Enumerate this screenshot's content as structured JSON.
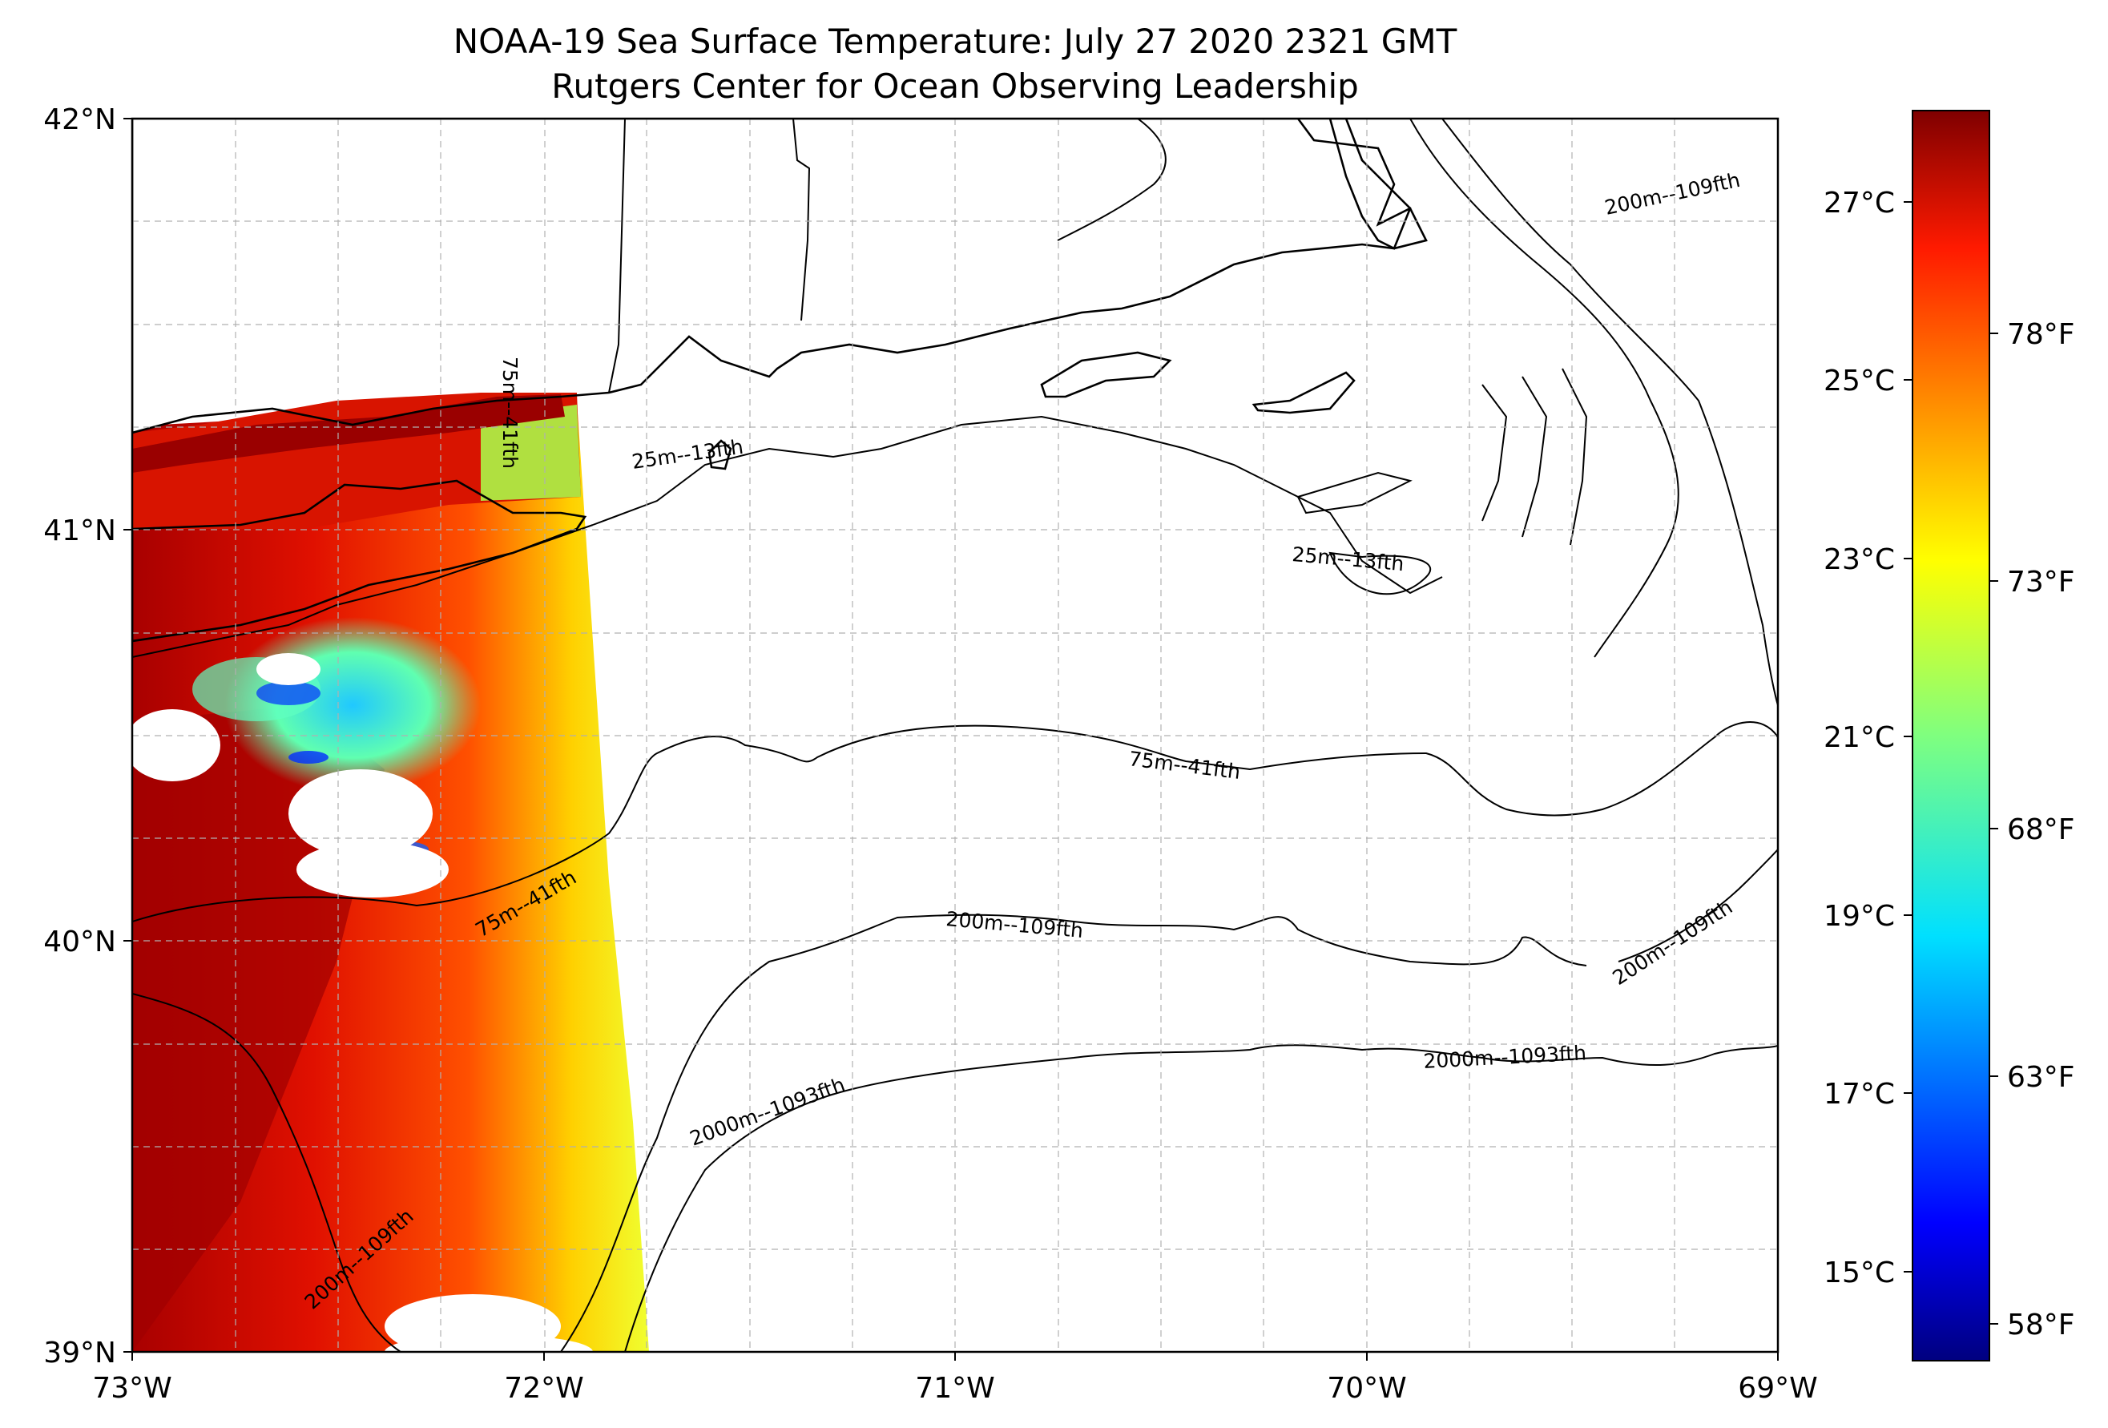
{
  "title_line1": "NOAA-19 Sea Surface Temperature: July 27 2020 2321 GMT",
  "title_line2": "Rutgers Center for Ocean Observing Leadership",
  "axes": {
    "lat_ticks": [
      "42°N",
      "41°N",
      "40°N",
      "39°N"
    ],
    "lon_ticks": [
      "73°W",
      "72°W",
      "71°W",
      "70°W",
      "69°W"
    ]
  },
  "colorbar": {
    "celsius_ticks": [
      "27°C",
      "25°C",
      "23°C",
      "21°C",
      "19°C",
      "17°C",
      "15°C"
    ],
    "fahrenheit_ticks": [
      "78°F",
      "73°F",
      "68°F",
      "63°F",
      "58°F"
    ],
    "range_c": [
      14.2,
      28.0
    ],
    "colormap": "jet"
  },
  "contour_labels": [
    "200m--109fth",
    "25m--13fth",
    "25m--13fth",
    "75m--41fth",
    "75m--41fth",
    "200m--109fth",
    "200m--109fth",
    "200m--109fth",
    "2000m--1093fth",
    "2000m--1093fth",
    "75m--41fth"
  ],
  "colors": {
    "land": "#d2b48c",
    "ocean": "#ffffff",
    "grid": "#b0b0b0"
  }
}
